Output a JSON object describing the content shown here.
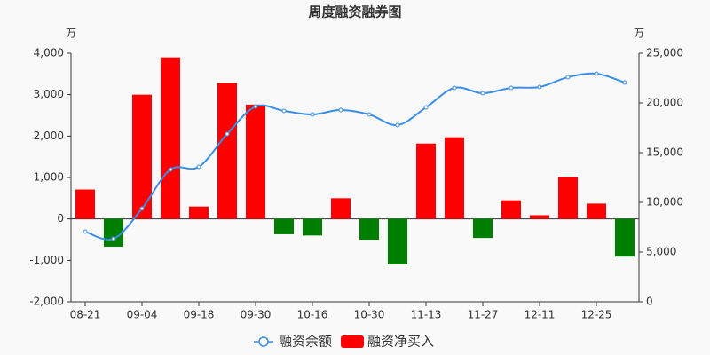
{
  "chart_data": {
    "type": "combo",
    "title": "周度融资融券图",
    "y_unit": "万",
    "y2_unit": "万",
    "categories": [
      "08-21",
      null,
      "09-04",
      null,
      "09-18",
      null,
      "09-30",
      null,
      "10-16",
      null,
      "10-30",
      null,
      "11-13",
      null,
      "11-27",
      null,
      "12-11",
      null,
      "12-25",
      null
    ],
    "series": [
      {
        "name": "融资余额",
        "type": "line",
        "axis": "y2",
        "color": "#3a8ee6",
        "values": [
          7050,
          6340,
          9380,
          13300,
          13570,
          16880,
          19640,
          19200,
          18840,
          19290,
          18840,
          17770,
          19550,
          21520,
          20980,
          21520,
          21610,
          22590,
          22950,
          22050
        ]
      },
      {
        "name": "融资净买入",
        "type": "bar",
        "axis": "y",
        "color": "#ff0000",
        "negative_color": "#008000",
        "values": [
          710,
          -670,
          3000,
          3900,
          300,
          3280,
          2760,
          -370,
          -400,
          500,
          -500,
          -1100,
          1820,
          1970,
          -460,
          450,
          90,
          1010,
          370,
          -910
        ]
      }
    ],
    "ylim": [
      -2000,
      4000
    ],
    "yticks": [
      {
        "value": -2000,
        "label": "-2,000"
      },
      {
        "value": -1000,
        "label": "-1,000"
      },
      0,
      {
        "value": 1000,
        "label": "1,000"
      },
      {
        "value": 2000,
        "label": "2,000"
      },
      {
        "value": 3000,
        "label": "3,000"
      },
      {
        "value": 4000,
        "label": "4,000"
      }
    ],
    "y2lim": [
      0,
      25000
    ],
    "y2ticks": [
      0,
      {
        "value": 5000,
        "label": "5,000"
      },
      {
        "value": 10000,
        "label": "10,000"
      },
      {
        "value": 15000,
        "label": "15,000"
      },
      {
        "value": 20000,
        "label": "20,000"
      },
      {
        "value": 25000,
        "label": "25,000"
      }
    ],
    "grid": false
  }
}
